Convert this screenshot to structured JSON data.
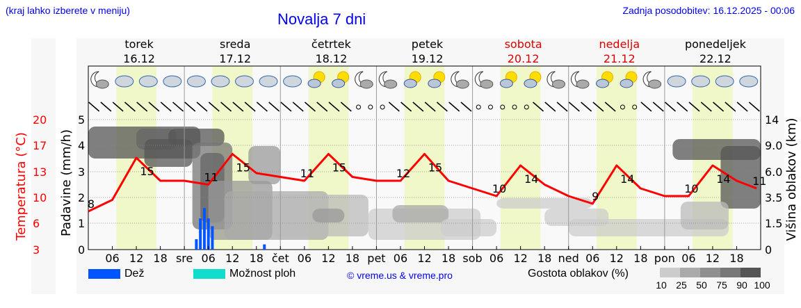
{
  "header": {
    "hint": "(kraj lahko izberete v meniju)",
    "title": "Novalja 7 dni",
    "updated": "Zadnja posodobitev: 16.12.2025 - 00:06"
  },
  "days": [
    {
      "name": "torek",
      "date": "16.12",
      "weekend": false
    },
    {
      "name": "sreda",
      "date": "17.12",
      "weekend": false
    },
    {
      "name": "četrtek",
      "date": "18.12",
      "weekend": false
    },
    {
      "name": "petek",
      "date": "19.12",
      "weekend": false
    },
    {
      "name": "sobota",
      "date": "20.12",
      "weekend": true
    },
    {
      "name": "nedelja",
      "date": "21.12",
      "weekend": true
    },
    {
      "name": "ponedeljek",
      "date": "22.12",
      "weekend": false
    }
  ],
  "axes": {
    "temp_label": "Temperatura (°C)",
    "precip_label": "Padavine (mm/h)",
    "cloud_label": "Višina oblakov (km)",
    "temp_ticks": [
      "20",
      "17",
      "13",
      "10",
      "6",
      "3"
    ],
    "precip_ticks": [
      "5",
      "4",
      "3",
      "2",
      "1",
      "0"
    ],
    "cloud_ticks": [
      "14",
      "9.0",
      "6.0",
      "3.5",
      "1.5",
      "0"
    ],
    "x_ticks": [
      "06",
      "12",
      "18",
      "sre",
      "06",
      "12",
      "18",
      "čet",
      "06",
      "12",
      "18",
      "pet",
      "06",
      "12",
      "18",
      "sob",
      "06",
      "12",
      "18",
      "ned",
      "06",
      "12",
      "18",
      "pon",
      "06",
      "12",
      "18"
    ]
  },
  "legend": {
    "rain": "Dež",
    "showers": "Možnost ploh",
    "copyright": "© vreme.us & vreme.pro",
    "cloud_density": "Gostota oblakov (%)",
    "cloud_scale": [
      "10",
      "25",
      "50",
      "75",
      "90",
      "100"
    ]
  },
  "colors": {
    "temperature": "#ff0000",
    "rain": "#0055ff",
    "showers": "#11ddcc",
    "daylight": "#f0f7c8",
    "title_blue": "#0000ee",
    "weekend": "#dd0000"
  },
  "chart_data": {
    "type": "line",
    "title": "Novalja 7 dni",
    "xlabel": "",
    "ylabel": "Temperatura (°C)",
    "x_range": [
      "16.12 00:00",
      "22.12 24:00"
    ],
    "series": [
      {
        "name": "Temperatura (°C)",
        "x_hours": [
          0,
          6,
          12,
          18,
          24,
          30,
          36,
          42,
          48,
          54,
          60,
          66,
          72,
          78,
          84,
          90,
          96,
          102,
          108,
          114,
          120,
          126,
          132,
          138,
          144,
          150,
          156,
          162,
          167
        ],
        "values": [
          8,
          9.5,
          15,
          12,
          12,
          11.5,
          15.5,
          13,
          12.5,
          12,
          15.5,
          12.5,
          12,
          12,
          15.5,
          12,
          11,
          10,
          14,
          11.5,
          10,
          9,
          14,
          11,
          10,
          10,
          14,
          12,
          11
        ]
      },
      {
        "name": "Padavine (mm/h) - Dež",
        "x_hours": [
          27,
          28,
          29,
          30,
          31,
          44
        ],
        "values": [
          0.4,
          1.2,
          1.6,
          1.2,
          0.9,
          0.2
        ]
      }
    ],
    "annotations": [
      {
        "label": "8",
        "hour": 0
      },
      {
        "label": "15",
        "hour": 14
      },
      {
        "label": "11",
        "hour": 30
      },
      {
        "label": "15",
        "hour": 38
      },
      {
        "label": "11",
        "hour": 54
      },
      {
        "label": "15",
        "hour": 62
      },
      {
        "label": "12",
        "hour": 78
      },
      {
        "label": "15",
        "hour": 86
      },
      {
        "label": "10",
        "hour": 102
      },
      {
        "label": "14",
        "hour": 110
      },
      {
        "label": "9",
        "hour": 126
      },
      {
        "label": "14",
        "hour": 134
      },
      {
        "label": "10",
        "hour": 150
      },
      {
        "label": "14",
        "hour": 158
      },
      {
        "label": "11",
        "hour": 167
      }
    ],
    "precip_ylim": [
      0,
      5
    ],
    "temp_ticks": [
      3,
      6,
      10,
      13,
      17,
      20
    ],
    "cloud_height_ticks_km": [
      0,
      1.5,
      3.5,
      6.0,
      9.0,
      14
    ],
    "grid": true,
    "legend_position": "bottom"
  }
}
